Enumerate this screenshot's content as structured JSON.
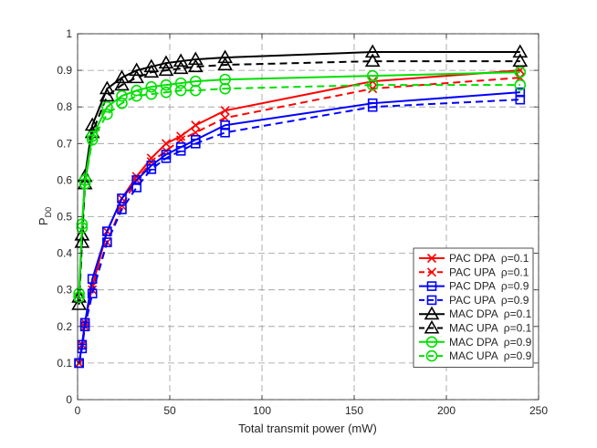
{
  "chart_data": {
    "type": "line",
    "title": "",
    "xlabel": "Total transmit power (mW)",
    "ylabel_main": "P",
    "ylabel_sub": "D0",
    "xlim": [
      0,
      250
    ],
    "ylim": [
      0,
      1
    ],
    "xticks": [
      0,
      50,
      100,
      150,
      200,
      250
    ],
    "yticks": [
      0,
      0.1,
      0.2,
      0.3,
      0.4,
      0.5,
      0.6,
      0.7,
      0.8,
      0.9,
      1
    ],
    "xtick_labels": [
      "0",
      "50",
      "100",
      "150",
      "200",
      "250"
    ],
    "ytick_labels": [
      "0",
      "0.1",
      "0.2",
      "0.3",
      "0.4",
      "0.5",
      "0.6",
      "0.7",
      "0.8",
      "0.9",
      "1"
    ],
    "grid": true,
    "legend_position": "lower-right",
    "x": [
      0.8,
      2.4,
      4,
      8,
      16,
      24,
      32,
      40,
      48,
      56,
      64,
      80,
      160,
      240
    ],
    "series": [
      {
        "name": "PAC DPA",
        "rho_label": "ρ=0.1",
        "color": "#ff0000",
        "dash": "solid",
        "marker": "x",
        "values": [
          0.1,
          0.15,
          0.21,
          0.31,
          0.46,
          0.55,
          0.61,
          0.66,
          0.7,
          0.72,
          0.75,
          0.79,
          0.87,
          0.9
        ]
      },
      {
        "name": "PAC UPA",
        "rho_label": "ρ=0.1",
        "color": "#ff0000",
        "dash": "dashed",
        "marker": "x",
        "values": [
          0.1,
          0.15,
          0.2,
          0.3,
          0.43,
          0.53,
          0.6,
          0.65,
          0.68,
          0.71,
          0.73,
          0.77,
          0.85,
          0.88
        ]
      },
      {
        "name": "PAC DPA",
        "rho_label": "ρ=0.9",
        "color": "#0000ff",
        "dash": "solid",
        "marker": "square",
        "values": [
          0.1,
          0.15,
          0.21,
          0.33,
          0.46,
          0.55,
          0.6,
          0.64,
          0.67,
          0.69,
          0.71,
          0.75,
          0.81,
          0.84
        ]
      },
      {
        "name": "PAC UPA",
        "rho_label": "ρ=0.9",
        "color": "#0000ff",
        "dash": "dashed",
        "marker": "square",
        "values": [
          0.1,
          0.14,
          0.2,
          0.29,
          0.43,
          0.52,
          0.58,
          0.63,
          0.66,
          0.68,
          0.7,
          0.73,
          0.8,
          0.82
        ]
      },
      {
        "name": "MAC DPA",
        "rho_label": "ρ=0.1",
        "color": "#000000",
        "dash": "solid",
        "marker": "triangle",
        "values": [
          0.28,
          0.45,
          0.61,
          0.75,
          0.85,
          0.88,
          0.9,
          0.91,
          0.92,
          0.925,
          0.93,
          0.935,
          0.95,
          0.95
        ]
      },
      {
        "name": "MAC UPA",
        "rho_label": "ρ=0.1",
        "color": "#000000",
        "dash": "dashed",
        "marker": "triangle",
        "values": [
          0.26,
          0.43,
          0.59,
          0.73,
          0.83,
          0.86,
          0.88,
          0.895,
          0.9,
          0.905,
          0.91,
          0.915,
          0.925,
          0.925
        ]
      },
      {
        "name": "MAC DPA",
        "rho_label": "ρ=0.9",
        "color": "#00e000",
        "dash": "solid",
        "marker": "circle",
        "values": [
          0.29,
          0.48,
          0.6,
          0.72,
          0.8,
          0.83,
          0.845,
          0.855,
          0.86,
          0.865,
          0.87,
          0.875,
          0.885,
          0.895
        ]
      },
      {
        "name": "MAC UPA",
        "rho_label": "ρ=0.9",
        "color": "#00e000",
        "dash": "dashed",
        "marker": "circle",
        "values": [
          0.28,
          0.47,
          0.59,
          0.71,
          0.78,
          0.81,
          0.83,
          0.835,
          0.84,
          0.845,
          0.845,
          0.85,
          0.86,
          0.86
        ]
      }
    ]
  }
}
